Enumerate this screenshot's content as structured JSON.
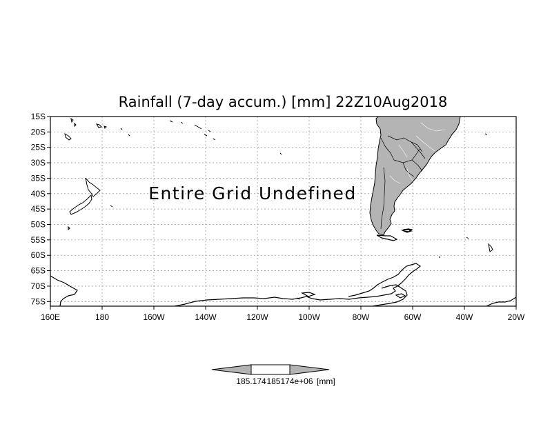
{
  "title": "Rainfall (7-day accum.) [mm] 22Z10Aug2018",
  "message": "Entire Grid Undefined",
  "map": {
    "projection": "latlon",
    "lon_range": [
      160,
      340
    ],
    "lat_range": [
      -76.5,
      -15
    ],
    "grid": true,
    "land_fill": "#b4b4b4",
    "grid_color": "#9a9a9a"
  },
  "axes": {
    "x_ticks": [
      {
        "lon": 160,
        "label": "160E"
      },
      {
        "lon": 180,
        "label": "180"
      },
      {
        "lon": 200,
        "label": "160W"
      },
      {
        "lon": 220,
        "label": "140W"
      },
      {
        "lon": 240,
        "label": "120W"
      },
      {
        "lon": 260,
        "label": "100W"
      },
      {
        "lon": 280,
        "label": "80W"
      },
      {
        "lon": 300,
        "label": "60W"
      },
      {
        "lon": 320,
        "label": "40W"
      },
      {
        "lon": 340,
        "label": "20W"
      }
    ],
    "y_ticks": [
      {
        "lat": -15,
        "label": "15S"
      },
      {
        "lat": -20,
        "label": "20S"
      },
      {
        "lat": -25,
        "label": "25S"
      },
      {
        "lat": -30,
        "label": "30S"
      },
      {
        "lat": -35,
        "label": "35S"
      },
      {
        "lat": -40,
        "label": "40S"
      },
      {
        "lat": -45,
        "label": "45S"
      },
      {
        "lat": -50,
        "label": "50S"
      },
      {
        "lat": -55,
        "label": "55S"
      },
      {
        "lat": -60,
        "label": "60S"
      },
      {
        "lat": -65,
        "label": "65S"
      },
      {
        "lat": -70,
        "label": "70S"
      },
      {
        "lat": -75,
        "label": "75S"
      }
    ]
  },
  "colorbar": {
    "label_left": "185.174",
    "label_right": "185174e+06",
    "units": "[mm]"
  }
}
